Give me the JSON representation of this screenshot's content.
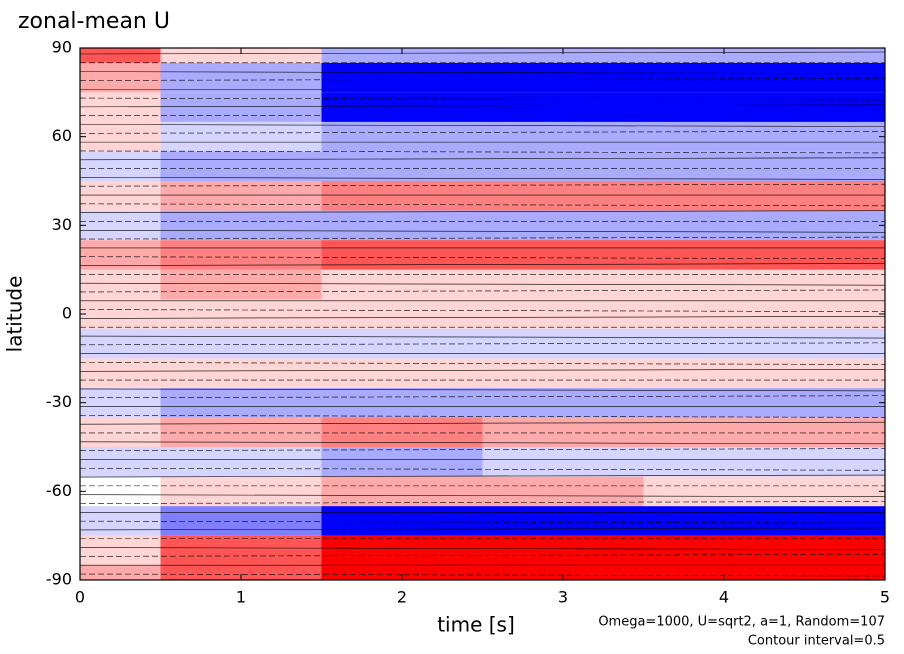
{
  "chart_data": {
    "type": "contour",
    "title": "zonal-mean U",
    "x_label": "time [s]",
    "y_label": "latitude",
    "annotations": [
      "Omega=1000, U=sqrt2, a=1, Random=107",
      "Contour interval=0.5"
    ],
    "x": [
      0,
      1,
      2,
      3,
      4,
      5
    ],
    "y": [
      -90,
      -80,
      -70,
      -60,
      -50,
      -40,
      -30,
      -20,
      -10,
      0,
      10,
      20,
      30,
      40,
      50,
      60,
      70,
      80,
      90
    ],
    "z": [
      [
        1,
        2,
        3,
        3,
        3,
        3
      ],
      [
        0.5,
        2,
        3,
        3,
        3,
        3
      ],
      [
        -0.5,
        -1.5,
        -3,
        -3,
        -3,
        -3
      ],
      [
        0,
        0.5,
        1,
        1,
        0.5,
        0.5
      ],
      [
        -0.5,
        -0.5,
        -1,
        -0.5,
        -0.5,
        -0.5
      ],
      [
        0.5,
        1,
        1.5,
        1,
        1,
        1
      ],
      [
        -0.5,
        -1,
        -1,
        -1,
        -1,
        -1
      ],
      [
        0.5,
        0.5,
        0.5,
        0.5,
        0.5,
        0.5
      ],
      [
        -0.5,
        -0.5,
        -0.5,
        -0.5,
        -0.5,
        -0.5
      ],
      [
        0.5,
        0.5,
        0.5,
        0.5,
        0.5,
        0.5
      ],
      [
        0.5,
        1,
        0.5,
        0.5,
        0.5,
        0.5
      ],
      [
        1,
        1.5,
        2,
        2,
        2,
        2
      ],
      [
        -0.5,
        -1,
        -1,
        -1,
        -1,
        -1
      ],
      [
        0.5,
        1,
        1.5,
        1.5,
        1.5,
        1.5
      ],
      [
        -0.5,
        -1,
        -1,
        -1,
        -1,
        -1
      ],
      [
        0.5,
        -0.5,
        -1,
        -1,
        -1,
        -1
      ],
      [
        0.5,
        -1,
        -3,
        -3,
        -3,
        -3
      ],
      [
        1,
        -1,
        -3,
        -3,
        -3,
        -3
      ],
      [
        2,
        0.5,
        -1,
        -1,
        -1,
        -1
      ]
    ],
    "colors": {
      "negative": "#0000ff",
      "positive": "#ff0000"
    },
    "xlim": [
      0,
      5
    ],
    "xticks": [
      0,
      1,
      2,
      3,
      4,
      5
    ],
    "ylim": [
      -90,
      90
    ],
    "yticks": [
      -90,
      -60,
      -30,
      0,
      30,
      60,
      90
    ]
  }
}
